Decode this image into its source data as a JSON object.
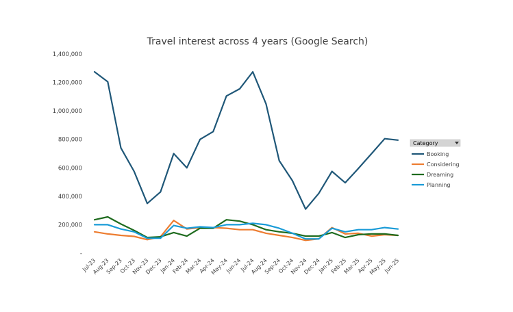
{
  "chart_data": {
    "type": "line",
    "title": "Travel interest across 4 years (Google Search)",
    "xlabel": "",
    "ylabel": "",
    "ylim": [
      0,
      1400000
    ],
    "grid": false,
    "legend_position": "right",
    "legend_title": "Category",
    "y_ticks": [
      "1,400,000",
      "1,200,000",
      "1,000,000",
      "800,000",
      "600,000",
      "400,000",
      "200,000",
      "-"
    ],
    "y_tick_values": [
      1400000,
      1200000,
      1000000,
      800000,
      600000,
      400000,
      200000,
      0
    ],
    "categories": [
      "Jul-23",
      "Aug-23",
      "Sep-23",
      "Oct-23",
      "Nov-23",
      "Dec-23",
      "Jan-24",
      "Feb-24",
      "Mar-24",
      "Apr-24",
      "May-24",
      "Jun-24",
      "Jul-24",
      "Aug-24",
      "Sep-24",
      "Oct-24",
      "Nov-24",
      "Dec-24",
      "Jan-25",
      "Feb-25",
      "Mar-25",
      "Apr-25",
      "May-25",
      "Jun-25"
    ],
    "series": [
      {
        "name": "Booking",
        "color": "#1f5778",
        "values": [
          1275000,
          1205000,
          740000,
          575000,
          350000,
          430000,
          700000,
          600000,
          800000,
          855000,
          1105000,
          1155000,
          1275000,
          1050000,
          650000,
          510000,
          310000,
          420000,
          575000,
          495000,
          595000,
          700000,
          805000,
          795000
        ]
      },
      {
        "name": "Considering",
        "color": "#ed7d31",
        "values": [
          150000,
          135000,
          125000,
          118000,
          95000,
          115000,
          230000,
          170000,
          180000,
          180000,
          175000,
          165000,
          165000,
          140000,
          125000,
          110000,
          90000,
          100000,
          180000,
          135000,
          140000,
          120000,
          130000,
          125000
        ]
      },
      {
        "name": "Dreaming",
        "color": "#1e6b1e",
        "values": [
          235000,
          255000,
          205000,
          160000,
          110000,
          115000,
          145000,
          120000,
          175000,
          175000,
          235000,
          225000,
          200000,
          165000,
          150000,
          140000,
          120000,
          120000,
          145000,
          110000,
          130000,
          135000,
          135000,
          125000
        ]
      },
      {
        "name": "Planning",
        "color": "#199bd7",
        "values": [
          200000,
          200000,
          170000,
          150000,
          105000,
          105000,
          195000,
          175000,
          185000,
          180000,
          200000,
          200000,
          210000,
          200000,
          175000,
          140000,
          100000,
          100000,
          175000,
          150000,
          165000,
          165000,
          180000,
          170000
        ]
      }
    ]
  }
}
